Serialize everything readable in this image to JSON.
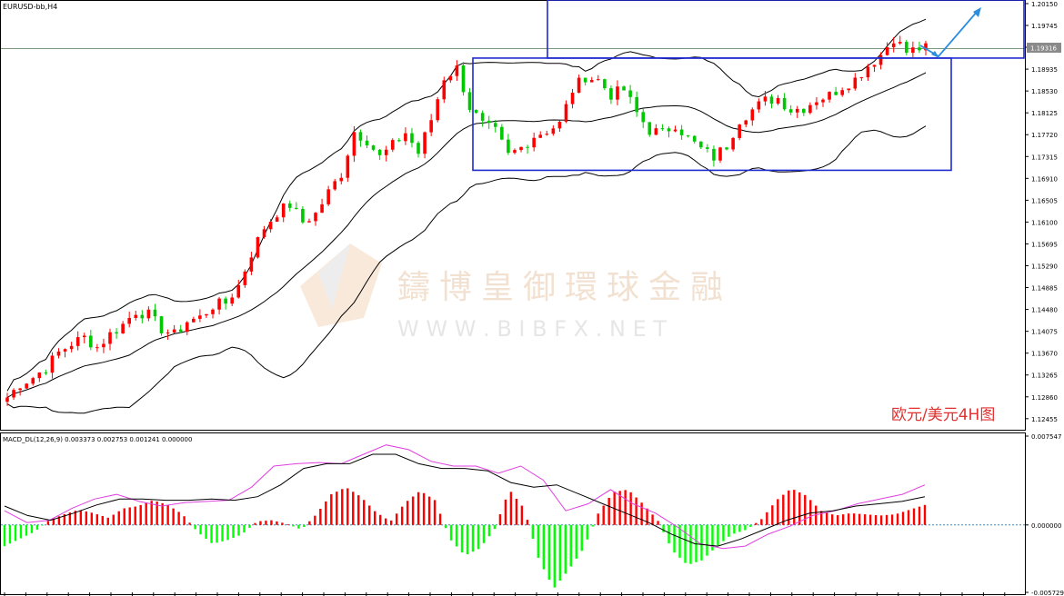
{
  "chart_data": [
    {
      "type": "candlestick",
      "title": "EURUSD-bb,H4",
      "ylim": [
        1.1225,
        1.202
      ],
      "ytick_labels": [
        "1.20150",
        "1.19745",
        "1.19340",
        "1.18935",
        "1.18530",
        "1.18125",
        "1.17720",
        "1.17315",
        "1.16910",
        "1.16505",
        "1.16100",
        "1.15695",
        "1.15290",
        "1.14885",
        "1.14480",
        "1.14075",
        "1.13670",
        "1.13265",
        "1.12860",
        "1.12455"
      ],
      "current_price": "1.19316",
      "annotation": "欧元/美元4H图",
      "close_path": [
        1.1285,
        1.131,
        1.1322,
        1.134,
        1.1368,
        1.1385,
        1.1396,
        1.1378,
        1.1402,
        1.142,
        1.1445,
        1.1438,
        1.1412,
        1.1401,
        1.1426,
        1.1433,
        1.1455,
        1.146,
        1.1492,
        1.1552,
        1.16,
        1.1628,
        1.1642,
        1.161,
        1.1625,
        1.1665,
        1.17,
        1.1778,
        1.1762,
        1.173,
        1.1752,
        1.1776,
        1.1738,
        1.18,
        1.1878,
        1.1895,
        1.1823,
        1.179,
        1.1777,
        1.1733,
        1.1748,
        1.177,
        1.178,
        1.1792,
        1.1855,
        1.188,
        1.1873,
        1.1846,
        1.1855,
        1.1812,
        1.178,
        1.1775,
        1.1792,
        1.1765,
        1.1745,
        1.173,
        1.1752,
        1.18,
        1.1818,
        1.1835,
        1.184,
        1.1818,
        1.1822,
        1.1838,
        1.1845,
        1.1862,
        1.1875,
        1.19,
        1.192,
        1.1952,
        1.1925,
        1.1932
      ]
    },
    {
      "type": "macd",
      "title": "MACD_DL(12,26,9) 0.003373 0.002753 0.001241 0.000000",
      "ylim": [
        -0.005729,
        0.007547
      ],
      "ytick_labels": [
        "0.007547",
        "0.000000",
        "-0.005729"
      ],
      "histogram": [
        -0.0018,
        -0.0012,
        -0.0006,
        0.0004,
        0.0009,
        0.0013,
        0.001,
        0.0006,
        0.0014,
        0.0016,
        0.0021,
        0.0017,
        0.0009,
        -0.0006,
        -0.0016,
        -0.0013,
        -0.0008,
        0.0003,
        0.0004,
        0.0001,
        -0.0004,
        0.0009,
        0.0026,
        0.0032,
        0.0024,
        0.0011,
        0.0003,
        0.0019,
        0.0029,
        0.0021,
        -0.0012,
        -0.0026,
        -0.002,
        -0.0004,
        0.003,
        0.0014,
        -0.003,
        -0.0054,
        -0.0038,
        -0.002,
        0.001,
        0.0028,
        0.003,
        0.0018,
        0.0004,
        -0.0022,
        -0.0034,
        -0.003,
        -0.0018,
        -0.0008,
        -0.0004,
        0.0005,
        0.0021,
        0.0031,
        0.0025,
        0.0012,
        0.0008,
        0.001,
        0.0009,
        0.0008,
        0.0009,
        0.0013,
        0.0017
      ],
      "macd_line": [
        0.0012,
        0.0002,
        0.0004,
        0.0014,
        0.0022,
        0.0026,
        0.002,
        0.0016,
        0.0019,
        0.002,
        0.0021,
        0.0032,
        0.005,
        0.0052,
        0.0053,
        0.0052,
        0.006,
        0.0068,
        0.0064,
        0.0054,
        0.005,
        0.005,
        0.0044,
        0.005,
        0.0038,
        0.0012,
        0.0018,
        0.003,
        0.0018,
        0.001,
        -0.0002,
        -0.0016,
        -0.002,
        -0.0018,
        -0.0008,
        -0.0001,
        0.0008,
        0.0012,
        0.0018,
        0.0022,
        0.0026,
        0.0034
      ],
      "signal_line": [
        0.0016,
        0.0008,
        0.0004,
        0.001,
        0.0017,
        0.0022,
        0.0022,
        0.0021,
        0.0021,
        0.0022,
        0.0021,
        0.0024,
        0.0034,
        0.0048,
        0.0052,
        0.0052,
        0.006,
        0.006,
        0.0052,
        0.0048,
        0.0048,
        0.0046,
        0.0036,
        0.0032,
        0.0034,
        0.0026,
        0.0018,
        0.001,
        0.0002,
        -0.0008,
        -0.0016,
        -0.0018,
        -0.0012,
        -0.0004,
        0.0004,
        0.001,
        0.0012,
        0.0016,
        0.0018,
        0.002,
        0.0024
      ]
    }
  ],
  "watermark": {
    "cn": "鑄博皇御環球金融",
    "en": "W W W . B I B F X . N E T"
  }
}
